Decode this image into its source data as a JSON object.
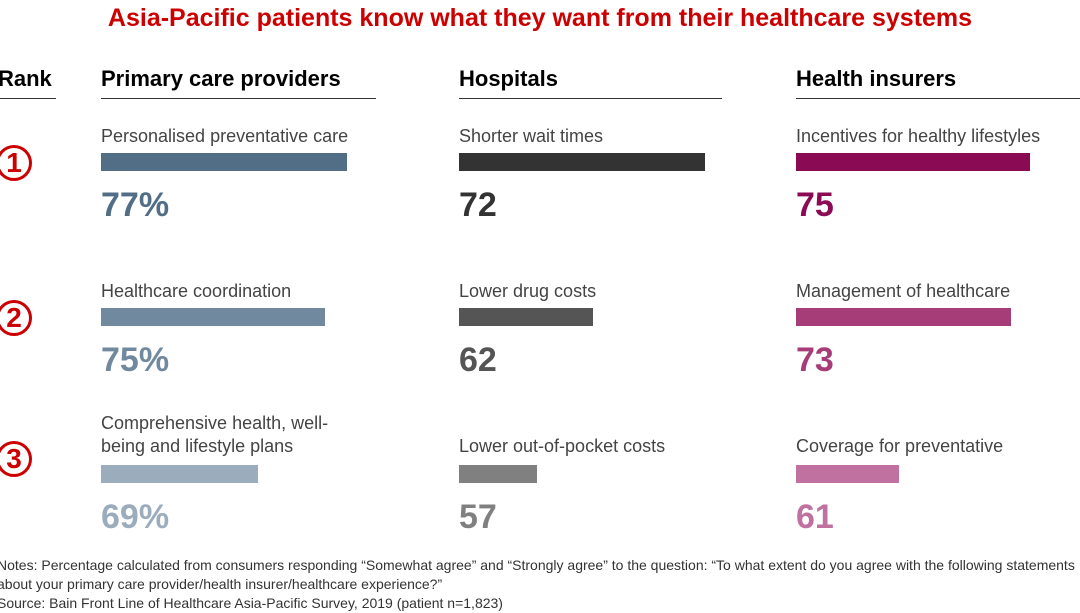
{
  "chart_data": {
    "type": "bar",
    "title": "Asia-Pacific patients know what they want from their healthcare systems",
    "rank_header": "Rank",
    "ranks": [
      "1",
      "2",
      "3"
    ],
    "columns": [
      {
        "header": "Primary care providers",
        "items": [
          {
            "label": "Personalised preventative care",
            "value": 77,
            "display": "77%",
            "color": "#526d86"
          },
          {
            "label": "Healthcare coordination",
            "value": 75,
            "display": "75%",
            "color": "#71899f"
          },
          {
            "label": "Comprehensive health, well-being and lifestyle plans",
            "value": 69,
            "display": "69%",
            "color": "#9badbd"
          }
        ]
      },
      {
        "header": "Hospitals",
        "items": [
          {
            "label": "Shorter wait times",
            "value": 72,
            "display": "72",
            "color": "#333333"
          },
          {
            "label": "Lower drug costs",
            "value": 62,
            "display": "62",
            "color": "#555555"
          },
          {
            "label": "Lower out-of-pocket costs",
            "value": 57,
            "display": "57",
            "color": "#808080"
          }
        ]
      },
      {
        "header": "Health insurers",
        "items": [
          {
            "label": "Incentives for healthy lifestyles",
            "value": 75,
            "display": "75",
            "color": "#8a0b53"
          },
          {
            "label": "Management of healthcare",
            "value": 73,
            "display": "73",
            "color": "#a73d78"
          },
          {
            "label": "Coverage for preventative measures",
            "value": 61,
            "display": "61",
            "color": "#c0719f"
          }
        ]
      }
    ],
    "notes": "Notes: Percentage calculated from consumers responding “Somewhat agree” and “Strongly agree” to the question: “To what extent do you agree with the following statements about your primary care provider/health insurer/healthcare experience?”",
    "source": "Source: Bain Front Line of Healthcare Asia-Pacific Survey, 2019 (patient n=1,823)"
  }
}
